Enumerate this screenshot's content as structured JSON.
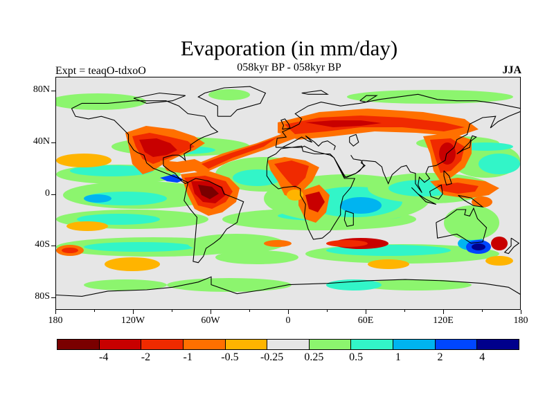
{
  "title": "Evaporation (in mm/day)",
  "subtitle": "058kyr BP - 058kyr BP",
  "left_label": "Expt = teaqO-tdxoO",
  "right_label": "JJA",
  "lat_labels": [
    "80N",
    "40N",
    "0",
    "40S",
    "80S"
  ],
  "lon_labels": [
    "180",
    "120W",
    "60W",
    "0",
    "60E",
    "120E",
    "180"
  ],
  "colorbar": {
    "colors": [
      "#7a0000",
      "#c80000",
      "#f02a00",
      "#ff7000",
      "#ffb400",
      "#e6e6e6",
      "#8cf56e",
      "#32f5c8",
      "#00b4f0",
      "#0046ff",
      "#00008c"
    ],
    "labels": [
      "-4",
      "-2",
      "-1",
      "-0.5",
      "-0.25",
      "0.25",
      "0.5",
      "1",
      "2",
      "4"
    ]
  },
  "chart_data": {
    "type": "heatmap",
    "title": "Evaporation (in mm/day)",
    "subtitle": "058kyr BP - 058kyr BP",
    "xlabel": "",
    "ylabel": "",
    "x_ticks": [
      "180",
      "120W",
      "60W",
      "0",
      "60E",
      "120E",
      "180"
    ],
    "y_ticks": [
      "80N",
      "40N",
      "0",
      "40S",
      "80S"
    ],
    "contour_levels": [
      -4,
      -2,
      -1,
      -0.5,
      -0.25,
      0.25,
      0.5,
      1,
      2,
      4
    ],
    "season": "JJA"
  }
}
